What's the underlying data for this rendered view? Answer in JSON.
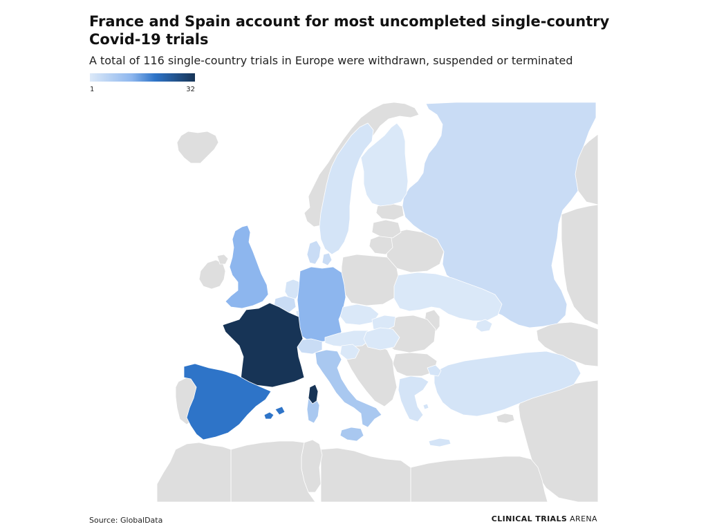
{
  "header": {
    "title": "France and Spain account for most uncompleted single-country Covid-19 trials",
    "subtitle": "A total of 116 single-country trials in Europe were withdrawn, suspended or terminated"
  },
  "legend": {
    "min_label": "1",
    "max_label": "32",
    "min_value": 1,
    "max_value": 32,
    "color_low": "#dce9f8",
    "color_high": "#173456"
  },
  "map_colors": {
    "no_data": "#dedede",
    "sea": "#ffffff"
  },
  "footer": {
    "source": "Source: GlobalData",
    "brand_strong": "CLINICAL TRIALS",
    "brand_light": " ARENA"
  }
}
